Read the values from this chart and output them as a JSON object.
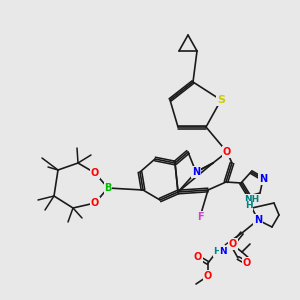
{
  "bg_color": "#e8e8e8",
  "bond_color": "#1a1a1a",
  "font_size": 7,
  "colors": {
    "S": "#cccc00",
    "O": "#ff0000",
    "N": "#0000ff",
    "F": "#cc44cc",
    "B": "#00bb00",
    "H": "#008080",
    "C": "#1a1a1a"
  }
}
